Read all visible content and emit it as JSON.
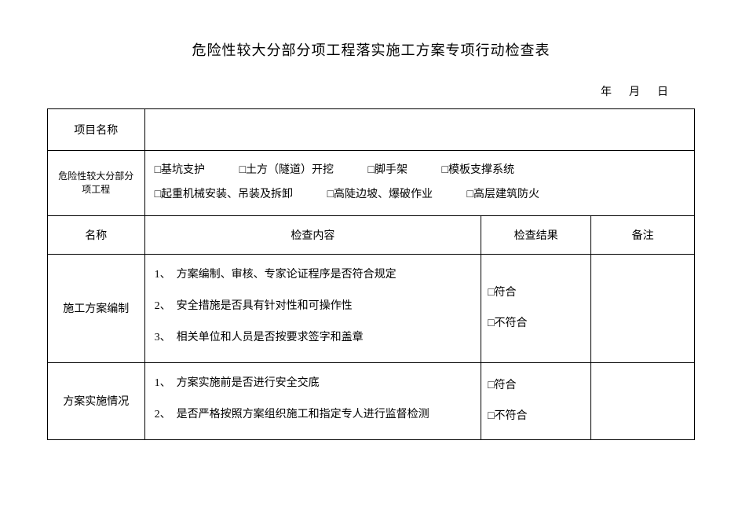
{
  "title": "危险性较大分部分项工程落实施工方案专项行动检查表",
  "dateLine": "年　月　日",
  "row1Label": "项目名称",
  "row2Label": "危险性较大分部分项工程",
  "checkboxGroup1": [
    "□基坑支护",
    "□土方（隧道）开挖",
    "□脚手架",
    "□模板支撑系统"
  ],
  "checkboxGroup2": [
    "□起重机械安装、吊装及拆卸",
    "□高陡边坡、爆破作业",
    "□高层建筑防火"
  ],
  "headers": {
    "name": "名称",
    "content": "检查内容",
    "result": "检查结果",
    "note": "备注"
  },
  "section1": {
    "name": "施工方案编制",
    "items": [
      "1、　方案编制、审核、专家论证程序是否符合规定",
      "2、　安全措施是否具有针对性和可操作性",
      "3、　相关单位和人员是否按要求签字和盖章"
    ],
    "results": [
      "□符合",
      "□不符合"
    ]
  },
  "section2": {
    "name": "方案实施情况",
    "items": [
      "1、　方案实施前是否进行安全交底",
      "2、　是否严格按照方案组织施工和指定专人进行监督检测"
    ],
    "results": [
      "□符合",
      "□不符合"
    ]
  }
}
